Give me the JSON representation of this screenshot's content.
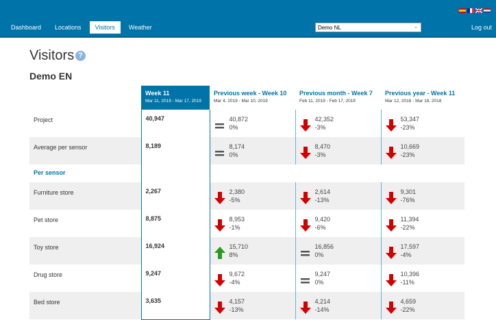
{
  "header": {
    "flags": [
      {
        "name": "spain-flag",
        "colors": [
          "#c60b1e",
          "#ffc400"
        ]
      },
      {
        "name": "france-flag",
        "colors": [
          "#002395",
          "#ffffff",
          "#ed2939"
        ]
      },
      {
        "name": "uk-flag",
        "colors": [
          "#012169",
          "#ffffff",
          "#c8102e"
        ]
      },
      {
        "name": "netherlands-flag",
        "colors": [
          "#ae1c28",
          "#ffffff",
          "#21468b"
        ]
      }
    ],
    "nav": [
      "Dashboard",
      "Locations",
      "Visitors",
      "Weather"
    ],
    "active_nav": "Visitors",
    "location_select": "Demo NL",
    "logout": "Log out"
  },
  "page": {
    "title": "Visitors",
    "help": "?",
    "subtitle": "Demo EN"
  },
  "columns": [
    {
      "title": "Week 11",
      "dates": "Mar 11, 2019 - Mar 17, 2019"
    },
    {
      "title": "Previous week - Week 10",
      "dates": "Mar 4, 2019 - Mar 10, 2019"
    },
    {
      "title": "Previous month - Week 7",
      "dates": "Feb 11, 2019 - Feb 17, 2019"
    },
    {
      "title": "Previous year - Week 11",
      "dates": "Mar 12, 2018 - Mar 18, 2018"
    }
  ],
  "section_label": "Per sensor",
  "rows": [
    {
      "label": "Project",
      "current": "40,947",
      "cmp": [
        {
          "trend": "equal",
          "value": "40,872",
          "pct": "0%"
        },
        {
          "trend": "down",
          "value": "42,352",
          "pct": "-3%"
        },
        {
          "trend": "down",
          "value": "53,347",
          "pct": "-23%"
        }
      ]
    },
    {
      "label": "Average per sensor",
      "current": "8,189",
      "cmp": [
        {
          "trend": "equal",
          "value": "8,174",
          "pct": "0%"
        },
        {
          "trend": "down",
          "value": "8,470",
          "pct": "-3%"
        },
        {
          "trend": "down",
          "value": "10,669",
          "pct": "-23%"
        }
      ]
    },
    {
      "label": "Furniture store",
      "current": "2,267",
      "cmp": [
        {
          "trend": "down",
          "value": "2,380",
          "pct": "-5%"
        },
        {
          "trend": "down",
          "value": "2,614",
          "pct": "-13%"
        },
        {
          "trend": "down",
          "value": "9,301",
          "pct": "-76%"
        }
      ]
    },
    {
      "label": "Pet store",
      "current": "8,875",
      "cmp": [
        {
          "trend": "down",
          "value": "8,953",
          "pct": "-1%"
        },
        {
          "trend": "down",
          "value": "9,420",
          "pct": "-6%"
        },
        {
          "trend": "down",
          "value": "11,394",
          "pct": "-22%"
        }
      ]
    },
    {
      "label": "Toy store",
      "current": "16,924",
      "cmp": [
        {
          "trend": "up",
          "value": "15,710",
          "pct": "8%"
        },
        {
          "trend": "equal",
          "value": "16,856",
          "pct": "0%"
        },
        {
          "trend": "down",
          "value": "17,597",
          "pct": "-4%"
        }
      ]
    },
    {
      "label": "Drug store",
      "current": "9,247",
      "cmp": [
        {
          "trend": "down",
          "value": "9,672",
          "pct": "-4%"
        },
        {
          "trend": "equal",
          "value": "9,247",
          "pct": "0%"
        },
        {
          "trend": "down",
          "value": "10,396",
          "pct": "-11%"
        }
      ]
    },
    {
      "label": "Bed store",
      "current": "3,635",
      "cmp": [
        {
          "trend": "down",
          "value": "4,157",
          "pct": "-13%"
        },
        {
          "trend": "down",
          "value": "4,214",
          "pct": "-14%"
        },
        {
          "trend": "down",
          "value": "4,659",
          "pct": "-22%"
        }
      ]
    }
  ],
  "colors": {
    "brand": "#0073a8",
    "down": "#d40000",
    "up": "#2a9a1e",
    "equal": "#555555"
  }
}
